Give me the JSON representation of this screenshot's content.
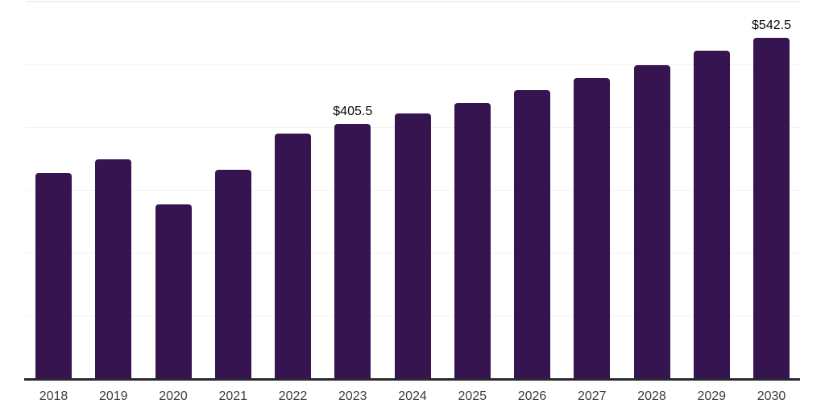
{
  "chart_data": {
    "type": "bar",
    "title": "",
    "xlabel": "",
    "ylabel": "",
    "categories": [
      "2018",
      "2019",
      "2020",
      "2021",
      "2022",
      "2023",
      "2024",
      "2025",
      "2026",
      "2027",
      "2028",
      "2029",
      "2030"
    ],
    "values": [
      327.5,
      349.2,
      276.3,
      332.6,
      390.2,
      405.5,
      422.1,
      438.8,
      459.2,
      478.4,
      498.9,
      521.9,
      542.5
    ],
    "data_labels": [
      {
        "category": "2023",
        "text": "$405.5"
      },
      {
        "category": "2030",
        "text": "$542.5"
      }
    ],
    "ylim": [
      0,
      600
    ],
    "gridline_step": 100,
    "grid": true,
    "legend": false,
    "y_tick_labels_visible": false,
    "colors": {
      "bar": "#361450",
      "axis": "#28282e",
      "gridline": "#f2f2f4",
      "tick_label": "#3d3d3d",
      "value_label": "#0a0a0a",
      "background": "#ffffff"
    }
  }
}
